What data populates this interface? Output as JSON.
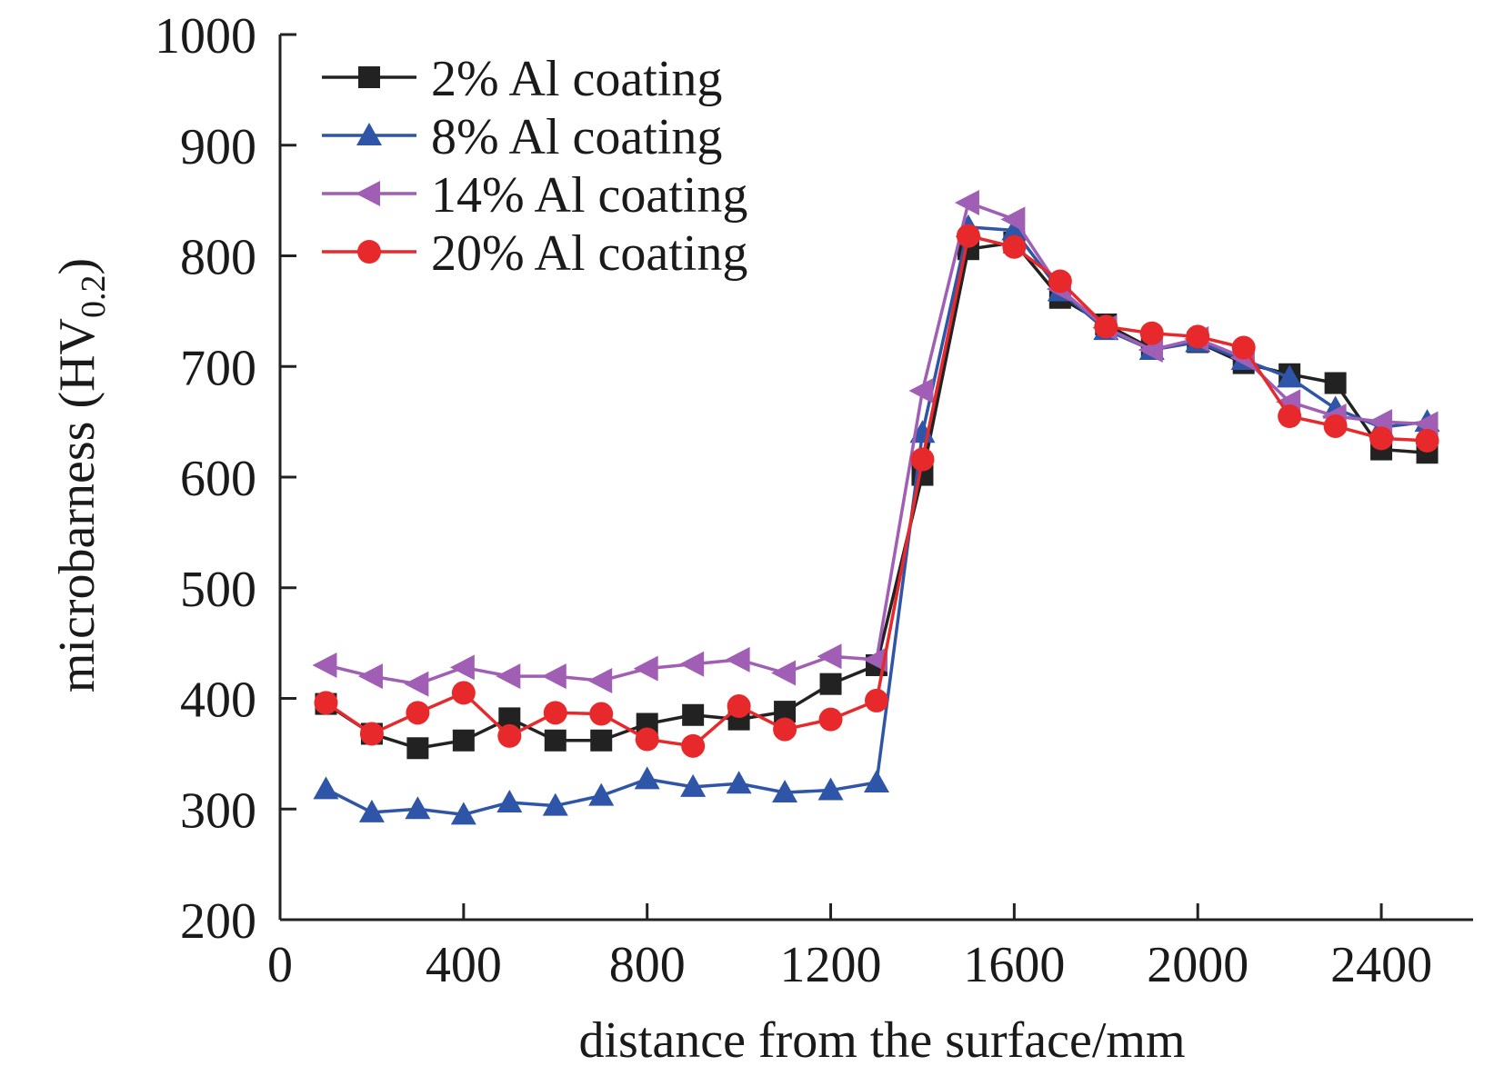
{
  "chart_data": {
    "type": "line",
    "xlabel": "distance from the surface/mm",
    "ylabel": {
      "main": "microbarness (HV",
      "sub": "0.2",
      "close": ")"
    },
    "xlim": [
      0,
      2600
    ],
    "ylim": [
      200,
      1000
    ],
    "xticks": [
      0,
      400,
      800,
      1200,
      1600,
      2000,
      2400
    ],
    "yticks": [
      200,
      300,
      400,
      500,
      600,
      700,
      800,
      900,
      1000
    ],
    "legend_position": "top-left",
    "grid": false,
    "x": [
      100,
      200,
      300,
      400,
      500,
      600,
      700,
      800,
      900,
      1000,
      1100,
      1200,
      1300,
      1400,
      1500,
      1600,
      1700,
      1800,
      1900,
      2000,
      2100,
      2200,
      2300,
      2400,
      2500
    ],
    "series": [
      {
        "name": "2% Al coating",
        "color": "#222222",
        "marker": "square",
        "values": [
          395,
          368,
          355,
          362,
          382,
          362,
          362,
          377,
          385,
          381,
          388,
          413,
          430,
          602,
          806,
          812,
          762,
          738,
          716,
          722,
          703,
          693,
          685,
          625,
          622
        ]
      },
      {
        "name": "8% Al coating",
        "color": "#2e55a7",
        "marker": "triangle-up",
        "values": [
          318,
          297,
          300,
          295,
          306,
          303,
          312,
          327,
          320,
          323,
          315,
          317,
          324,
          640,
          826,
          823,
          768,
          733,
          715,
          722,
          706,
          690,
          662,
          645,
          650
        ]
      },
      {
        "name": "14% Al coating",
        "color": "#a05fb4",
        "marker": "triangle-left",
        "values": [
          430,
          420,
          413,
          428,
          420,
          420,
          416,
          427,
          431,
          435,
          423,
          438,
          435,
          678,
          848,
          833,
          770,
          735,
          715,
          725,
          708,
          668,
          655,
          650,
          648
        ]
      },
      {
        "name": "20% Al coating",
        "color": "#e8292b",
        "marker": "circle",
        "values": [
          396,
          368,
          387,
          405,
          366,
          387,
          386,
          363,
          357,
          393,
          372,
          381,
          398,
          616,
          818,
          808,
          777,
          736,
          730,
          727,
          717,
          655,
          646,
          635,
          633
        ]
      }
    ]
  }
}
